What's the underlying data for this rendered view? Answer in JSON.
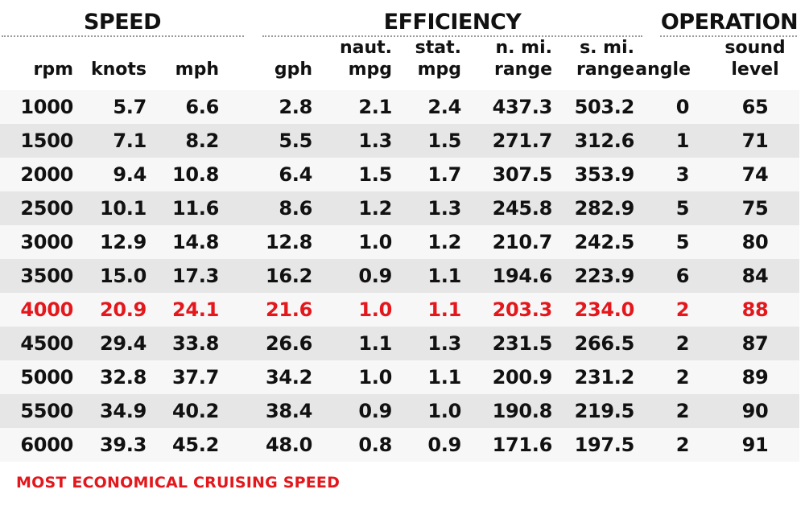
{
  "groups": {
    "speed": "SPEED",
    "efficiency": "EFFICIENCY",
    "operation": "OPERATION"
  },
  "columns": [
    {
      "top": "",
      "bottom": "rpm"
    },
    {
      "top": "",
      "bottom": "knots"
    },
    {
      "top": "",
      "bottom": "mph"
    },
    {
      "top": "",
      "bottom": "gph"
    },
    {
      "top": "naut.",
      "bottom": "mpg"
    },
    {
      "top": "stat.",
      "bottom": "mpg"
    },
    {
      "top": "n. mi.",
      "bottom": "range"
    },
    {
      "top": "s. mi.",
      "bottom": "range"
    },
    {
      "top": "",
      "bottom": "angle"
    },
    {
      "top": "sound",
      "bottom": "level"
    }
  ],
  "rows": [
    [
      "1000",
      "5.7",
      "6.6",
      "2.8",
      "2.1",
      "2.4",
      "437.3",
      "503.2",
      "0",
      "65"
    ],
    [
      "1500",
      "7.1",
      "8.2",
      "5.5",
      "1.3",
      "1.5",
      "271.7",
      "312.6",
      "1",
      "71"
    ],
    [
      "2000",
      "9.4",
      "10.8",
      "6.4",
      "1.5",
      "1.7",
      "307.5",
      "353.9",
      "3",
      "74"
    ],
    [
      "2500",
      "10.1",
      "11.6",
      "8.6",
      "1.2",
      "1.3",
      "245.8",
      "282.9",
      "5",
      "75"
    ],
    [
      "3000",
      "12.9",
      "14.8",
      "12.8",
      "1.0",
      "1.2",
      "210.7",
      "242.5",
      "5",
      "80"
    ],
    [
      "3500",
      "15.0",
      "17.3",
      "16.2",
      "0.9",
      "1.1",
      "194.6",
      "223.9",
      "6",
      "84"
    ],
    [
      "4000",
      "20.9",
      "24.1",
      "21.6",
      "1.0",
      "1.1",
      "203.3",
      "234.0",
      "2",
      "88"
    ],
    [
      "4500",
      "29.4",
      "33.8",
      "26.6",
      "1.1",
      "1.3",
      "231.5",
      "266.5",
      "2",
      "87"
    ],
    [
      "5000",
      "32.8",
      "37.7",
      "34.2",
      "1.0",
      "1.1",
      "200.9",
      "231.2",
      "2",
      "89"
    ],
    [
      "5500",
      "34.9",
      "40.2",
      "38.4",
      "0.9",
      "1.0",
      "190.8",
      "219.5",
      "2",
      "90"
    ],
    [
      "6000",
      "39.3",
      "45.2",
      "48.0",
      "0.8",
      "0.9",
      "171.6",
      "197.5",
      "2",
      "91"
    ]
  ],
  "highlight_row_index": 6,
  "footer": "MOST ECONOMICAL CRUISING SPEED",
  "colors": {
    "highlight": "#e3171c",
    "text": "#111111",
    "row_alt": "#e6e6e6",
    "row_normal": "#f7f7f7"
  },
  "chart_data": {
    "type": "table",
    "title": "",
    "column_groups": [
      {
        "name": "SPEED",
        "columns": [
          "rpm",
          "knots",
          "mph"
        ]
      },
      {
        "name": "EFFICIENCY",
        "columns": [
          "gph",
          "naut. mpg",
          "stat. mpg",
          "n. mi. range",
          "s. mi. range"
        ]
      },
      {
        "name": "OPERATION",
        "columns": [
          "angle",
          "sound level"
        ]
      }
    ],
    "columns": [
      "rpm",
      "knots",
      "mph",
      "gph",
      "naut. mpg",
      "stat. mpg",
      "n. mi. range",
      "s. mi. range",
      "angle",
      "sound level"
    ],
    "rows": [
      [
        1000,
        5.7,
        6.6,
        2.8,
        2.1,
        2.4,
        437.3,
        503.2,
        0,
        65
      ],
      [
        1500,
        7.1,
        8.2,
        5.5,
        1.3,
        1.5,
        271.7,
        312.6,
        1,
        71
      ],
      [
        2000,
        9.4,
        10.8,
        6.4,
        1.5,
        1.7,
        307.5,
        353.9,
        3,
        74
      ],
      [
        2500,
        10.1,
        11.6,
        8.6,
        1.2,
        1.3,
        245.8,
        282.9,
        5,
        75
      ],
      [
        3000,
        12.9,
        14.8,
        12.8,
        1.0,
        1.2,
        210.7,
        242.5,
        5,
        80
      ],
      [
        3500,
        15.0,
        17.3,
        16.2,
        0.9,
        1.1,
        194.6,
        223.9,
        6,
        84
      ],
      [
        4000,
        20.9,
        24.1,
        21.6,
        1.0,
        1.1,
        203.3,
        234.0,
        2,
        88
      ],
      [
        4500,
        29.4,
        33.8,
        26.6,
        1.1,
        1.3,
        231.5,
        266.5,
        2,
        87
      ],
      [
        5000,
        32.8,
        37.7,
        34.2,
        1.0,
        1.1,
        200.9,
        231.2,
        2,
        89
      ],
      [
        5500,
        34.9,
        40.2,
        38.4,
        0.9,
        1.0,
        190.8,
        219.5,
        2,
        90
      ],
      [
        6000,
        39.3,
        45.2,
        48.0,
        0.8,
        0.9,
        171.6,
        197.5,
        2,
        91
      ]
    ],
    "highlighted_row": {
      "rpm": 4000,
      "meaning": "MOST ECONOMICAL CRUISING SPEED"
    },
    "annotations": [
      "MOST ECONOMICAL CRUISING SPEED"
    ]
  }
}
